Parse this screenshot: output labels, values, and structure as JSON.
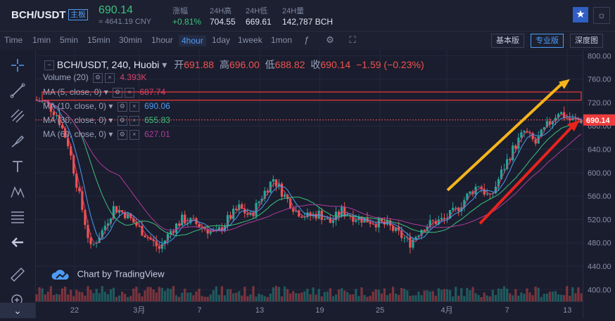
{
  "header": {
    "pair": "BCH/USDT",
    "board": "主板",
    "price": "690.14",
    "cny": "≈ 4641.19 CNY",
    "stats": [
      {
        "label": "涨幅",
        "value": "+0.81%",
        "color": "#3cc17f"
      },
      {
        "label": "24H高",
        "value": "704.55",
        "color": "#e1e5f0"
      },
      {
        "label": "24H低",
        "value": "669.61",
        "color": "#e1e5f0"
      },
      {
        "label": "24H量",
        "value": "142,787 BCH",
        "color": "#e1e5f0"
      }
    ]
  },
  "toolbar": {
    "timeframes": [
      "Time",
      "1min",
      "5min",
      "15min",
      "30min",
      "1hour",
      "4hour",
      "1day",
      "1week",
      "1mon"
    ],
    "active_timeframe": "4hour",
    "views": [
      "基本版",
      "专业版",
      "深度图"
    ],
    "active_view": "专业版"
  },
  "legend": {
    "symbol": "BCH/USDT, 240, Huobi",
    "open_label": "开",
    "open": "691.88",
    "high_label": "高",
    "high": "696.00",
    "low_label": "低",
    "low": "688.82",
    "close_label": "收",
    "close": "690.14",
    "change": "−1.59 (−0.23%)",
    "volume": {
      "label": "Volume (20)",
      "value": "4.393K",
      "color": "#d9416b"
    },
    "mas": [
      {
        "label": "MA (5, close, 0)",
        "value": "687.74",
        "color": "#d9416b"
      },
      {
        "label": "MA (10, close, 0)",
        "value": "690.06",
        "color": "#4e9bf3"
      },
      {
        "label": "MA (30, close, 0)",
        "value": "655.83",
        "color": "#3cc17f"
      },
      {
        "label": "MA (60, close, 0)",
        "value": "627.01",
        "color": "#b03a9b"
      }
    ]
  },
  "watermark": "Chart by TradingView",
  "chart_data": {
    "type": "line",
    "title": "BCH/USDT, 240, Huobi",
    "ylim": [
      380,
      810
    ],
    "y_ticks": [
      800,
      760,
      720,
      680,
      640,
      600,
      560,
      520,
      480,
      440,
      400
    ],
    "x_ticks": [
      "22",
      "3月",
      "7",
      "13",
      "19",
      "25",
      "4月",
      "7",
      "13"
    ],
    "last_price": 690.14,
    "series": [
      {
        "name": "BCH/USDT",
        "values": [
          725,
          720,
          700,
          650,
          560,
          470,
          500,
          540,
          530,
          510,
          490,
          470,
          500,
          520,
          515,
          505,
          495,
          520,
          540,
          525,
          560,
          590,
          560,
          535,
          525,
          530,
          515,
          535,
          525,
          520,
          515,
          510,
          495,
          480,
          505,
          515,
          520,
          535,
          560,
          580,
          555,
          600,
          640,
          670,
          650,
          680,
          705,
          690,
          690
        ]
      }
    ]
  },
  "colors": {
    "up": "#26a69a",
    "down": "#ef5350",
    "accent": "#4e9bf3"
  }
}
